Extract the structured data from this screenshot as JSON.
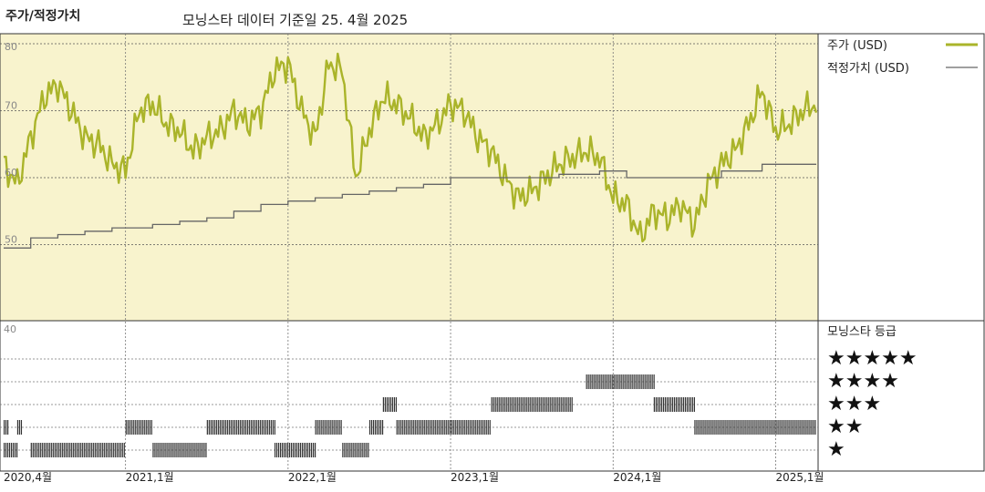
{
  "header": {
    "title": "주가/적정가치",
    "subtitle": "모닝스타 데이터 기준일 25. 4월 2025"
  },
  "colors": {
    "price": "#aab42a",
    "fair_value": "#666666",
    "plot_background": "#f8f3cd",
    "rating_bar": "#333333"
  },
  "chart_data": [
    {
      "type": "line",
      "title": "",
      "x_range": [
        "2020-04",
        "2025-04"
      ],
      "ylim": [
        40,
        80
      ],
      "y_ticks": [
        "80",
        "70",
        "60",
        "50"
      ],
      "x_ticks": [
        "2020,4월",
        "2021,1월",
        "2022,1월",
        "2023,1월",
        "2024,1월",
        "2025,1월"
      ],
      "grid": true,
      "legend_position": "right",
      "series": [
        {
          "name": "주가 (USD)",
          "x": [
            "2020-04",
            "2020-05",
            "2020-06",
            "2020-07",
            "2020-08",
            "2020-09",
            "2020-10",
            "2020-11",
            "2020-12",
            "2021-01",
            "2021-02",
            "2021-03",
            "2021-04",
            "2021-05",
            "2021-06",
            "2021-07",
            "2021-08",
            "2021-09",
            "2021-10",
            "2021-11",
            "2021-12",
            "2022-01",
            "2022-02",
            "2022-03",
            "2022-04",
            "2022-05",
            "2022-06",
            "2022-07",
            "2022-08",
            "2022-09",
            "2022-10",
            "2022-11",
            "2022-12",
            "2023-01",
            "2023-02",
            "2023-03",
            "2023-04",
            "2023-05",
            "2023-06",
            "2023-07",
            "2023-08",
            "2023-09",
            "2023-10",
            "2023-11",
            "2023-12",
            "2024-01",
            "2024-02",
            "2024-03",
            "2024-04",
            "2024-05",
            "2024-06",
            "2024-07",
            "2024-08",
            "2024-09",
            "2024-10",
            "2024-11",
            "2024-12",
            "2025-01",
            "2025-02",
            "2025-03",
            "2025-04"
          ],
          "values": [
            62,
            59,
            66,
            72,
            74,
            70,
            66,
            65,
            62,
            61,
            70,
            71,
            68,
            67,
            64,
            66,
            67,
            70,
            68,
            70,
            76,
            77,
            70,
            66,
            77,
            76,
            60,
            67,
            72,
            71,
            69,
            66,
            68,
            71,
            70,
            66,
            64,
            60,
            57,
            58,
            60,
            62,
            63,
            64,
            63,
            57,
            56,
            51,
            55,
            54,
            56,
            53,
            59,
            62,
            64,
            68,
            73,
            67,
            68,
            70,
            71
          ]
        },
        {
          "name": "적정가치 (USD)",
          "x": [
            "2020-04",
            "2020-06",
            "2020-08",
            "2020-10",
            "2020-12",
            "2021-03",
            "2021-05",
            "2021-07",
            "2021-09",
            "2021-11",
            "2022-01",
            "2022-03",
            "2022-05",
            "2022-07",
            "2022-09",
            "2022-11",
            "2023-01",
            "2023-03",
            "2023-06",
            "2023-09",
            "2023-12",
            "2024-02",
            "2024-04",
            "2024-06",
            "2024-09",
            "2024-12",
            "2025-04"
          ],
          "values": [
            49.5,
            51,
            51.5,
            52,
            52.5,
            53,
            53.5,
            54,
            55,
            56,
            56.5,
            57,
            57.5,
            58,
            58.5,
            59,
            60,
            60,
            60,
            60.5,
            61,
            60,
            60,
            60,
            61,
            62,
            62
          ]
        }
      ]
    },
    {
      "type": "heatmap",
      "title": "모닝스타 등급",
      "rows": [
        "★★★★★",
        "★★★★",
        "★★★",
        "★★",
        "★"
      ],
      "segments": [
        {
          "rating": 1,
          "start": "2020-04",
          "end": "2020-05"
        },
        {
          "rating": 2,
          "start": "2020-04",
          "end": "2020-04"
        },
        {
          "rating": 2,
          "start": "2020-05",
          "end": "2020-05"
        },
        {
          "rating": 1,
          "start": "2020-06",
          "end": "2021-01"
        },
        {
          "rating": 2,
          "start": "2021-01",
          "end": "2021-03"
        },
        {
          "rating": 1,
          "start": "2021-03",
          "end": "2021-07"
        },
        {
          "rating": 2,
          "start": "2021-07",
          "end": "2021-12"
        },
        {
          "rating": 1,
          "start": "2021-12",
          "end": "2022-03"
        },
        {
          "rating": 2,
          "start": "2022-03",
          "end": "2022-05"
        },
        {
          "rating": 1,
          "start": "2022-05",
          "end": "2022-07"
        },
        {
          "rating": 2,
          "start": "2022-07",
          "end": "2022-08"
        },
        {
          "rating": 3,
          "start": "2022-08",
          "end": "2022-09"
        },
        {
          "rating": 2,
          "start": "2022-09",
          "end": "2023-04"
        },
        {
          "rating": 3,
          "start": "2023-04",
          "end": "2023-10"
        },
        {
          "rating": 4,
          "start": "2023-11",
          "end": "2024-04"
        },
        {
          "rating": 3,
          "start": "2024-04",
          "end": "2024-07"
        },
        {
          "rating": 2,
          "start": "2024-07",
          "end": "2025-04"
        }
      ]
    }
  ],
  "legend": {
    "price_label": "주가 (USD)",
    "fair_value_label": "적정가치 (USD)",
    "rating_title": "모닝스타 등급",
    "rating_rows": [
      "★★★★★",
      "★★★★",
      "★★★",
      "★★",
      "★"
    ]
  },
  "rating_axis_label": "40"
}
